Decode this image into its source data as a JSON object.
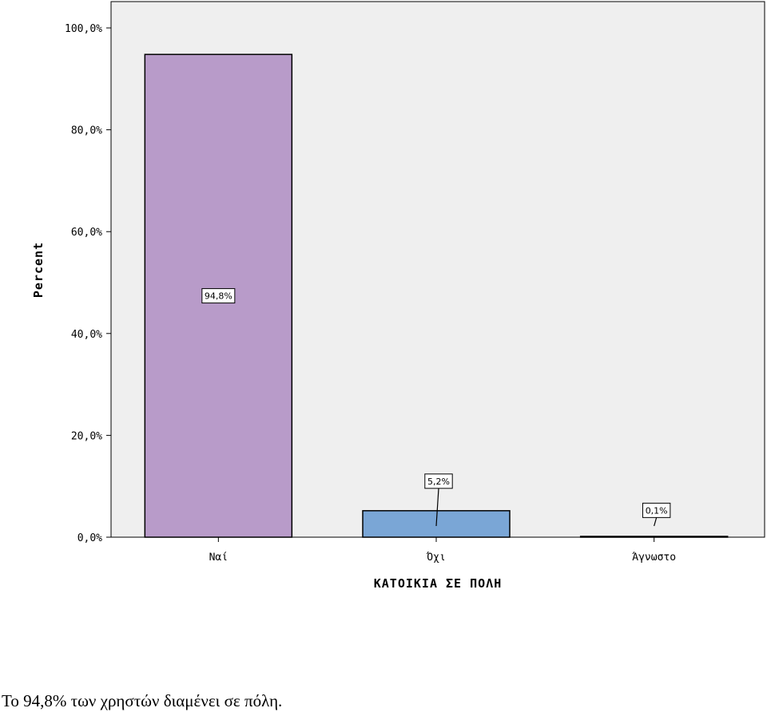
{
  "chart_data": {
    "type": "bar",
    "categories": [
      "Ναί",
      "Όχι",
      "Άγνωστο"
    ],
    "values": [
      94.8,
      5.2,
      0.1
    ],
    "data_labels": [
      "94,8%",
      "5,2%",
      "0,1%"
    ],
    "colors": [
      "#b89bc9",
      "#7aa6d6",
      "#b89bc9"
    ],
    "xlabel": "ΚΑΤΟΙΚΙΑ ΣΕ ΠΟΛΗ",
    "ylabel": "Percent",
    "ylim": [
      0,
      100
    ],
    "yticks": [
      0,
      20,
      40,
      60,
      80,
      100
    ],
    "ytick_labels": [
      "0,0%",
      "20,0%",
      "40,0%",
      "60,0%",
      "80,0%",
      "100,0%"
    ],
    "grid": false,
    "plot_background": "#efefef"
  },
  "caption": "Το 94,8% των χρηστών διαμένει σε πόλη."
}
